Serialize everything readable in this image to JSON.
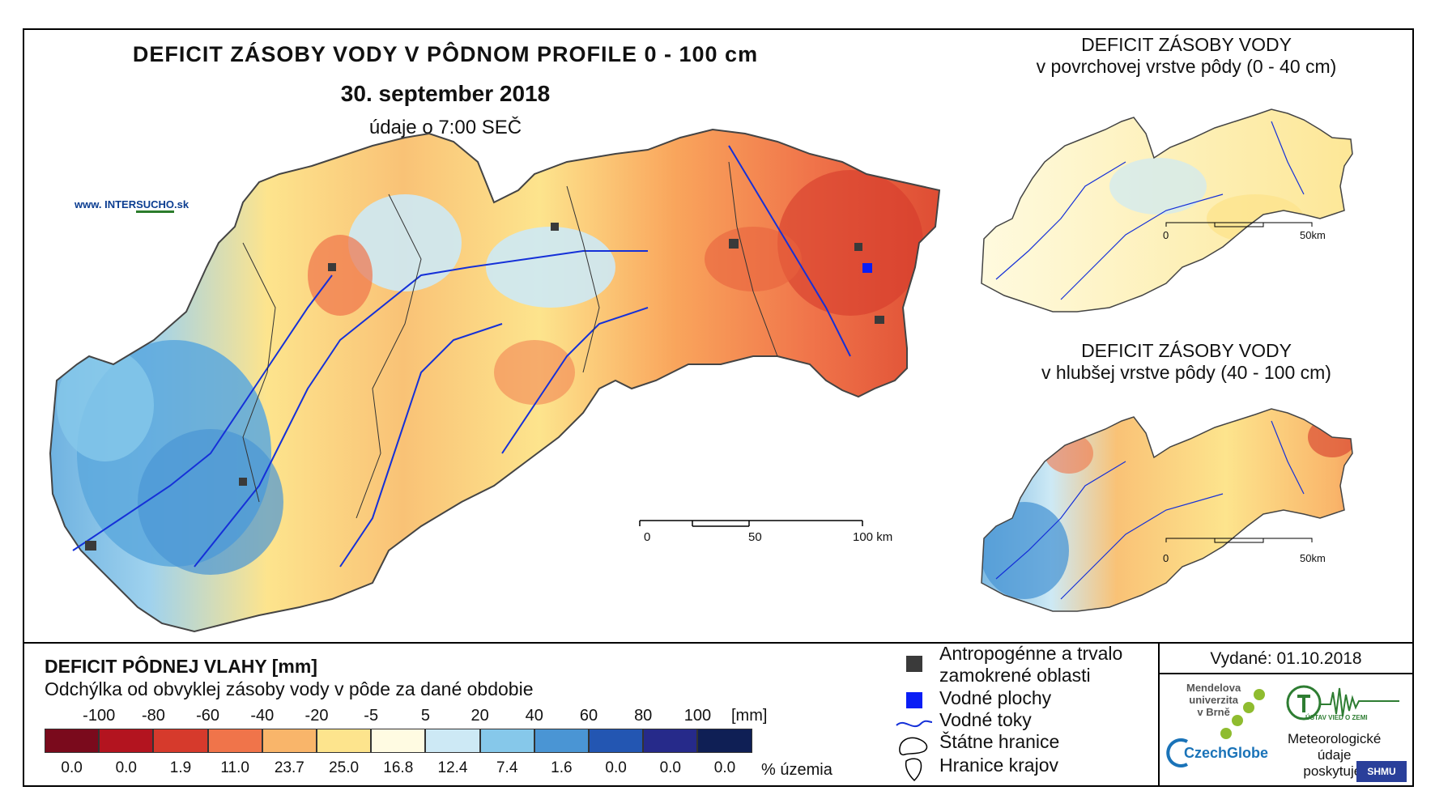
{
  "header": {
    "title": "DEFICIT ZÁSOBY VODY V PÔDNOM PROFILE 0 - 100 cm",
    "date": "30. september 2018",
    "time": "údaje o 7:00 SEČ",
    "site_prefix": "www. INTER",
    "site_mid": "SUCHO",
    "site_suffix": ".sk"
  },
  "main_map": {
    "scale_labels": [
      "0",
      "50",
      "100 km"
    ]
  },
  "inset_top": {
    "title_line1": "DEFICIT ZÁSOBY VODY",
    "title_line2": "v povrchovej vrstve pôdy (0 - 40 cm)",
    "scale_labels": [
      "0",
      "50km"
    ]
  },
  "inset_bottom": {
    "title_line1": "DEFICIT ZÁSOBY VODY",
    "title_line2": "v hlubšej vrstve pôdy (40 - 100 cm)",
    "scale_labels": [
      "0",
      "50km"
    ]
  },
  "legend": {
    "title": "DEFICIT PÔDNEJ VLAHY [mm]",
    "subtitle": "Odchýlka od obvyklej zásoby vody v pôde za dané obdobie",
    "unit": "[mm]",
    "pct_label": "% územia",
    "class_labels": [
      "-100",
      "-80",
      "-60",
      "-40",
      "-20",
      "-5",
      "5",
      "20",
      "40",
      "60",
      "80",
      "100"
    ],
    "colors": [
      "#7a0a1c",
      "#b3141f",
      "#d63a2c",
      "#f0744a",
      "#f9b56a",
      "#fde48d",
      "#fffbe2",
      "#cde9f5",
      "#86c8ea",
      "#4a95d4",
      "#2356b2",
      "#262a8a",
      "#0f1f55"
    ],
    "percentages": [
      "0.0",
      "0.0",
      "1.9",
      "11.0",
      "23.7",
      "25.0",
      "16.8",
      "12.4",
      "7.4",
      "1.6",
      "0.0",
      "0.0",
      "0.0"
    ]
  },
  "symbols": {
    "anthropogenic_line1": "Antropogénne a trvalo",
    "anthropogenic_line2": "zamokrené oblasti",
    "water_areas": "Vodné plochy",
    "water_streams": "Vodné toky",
    "state_border": "Štátne hranice",
    "region_border": "Hranice krajov",
    "colors": {
      "anthropogenic": "#3a3a3a",
      "water_area": "#0a1ef5",
      "stream": "#1530d8"
    }
  },
  "issued": "Vydané: 01.10.2018",
  "logos": {
    "mendel_line1": "Mendelova",
    "mendel_line2": "univerzita",
    "mendel_line3": "v Brně",
    "czechglobe": "CzechGlobe",
    "uvz": "ÚSTAV VIED O ZEMI",
    "meteo_line1": "Meteorologické",
    "meteo_line2": "údaje",
    "meteo_line3": "poskytuje:",
    "shmu": "SHMU"
  }
}
